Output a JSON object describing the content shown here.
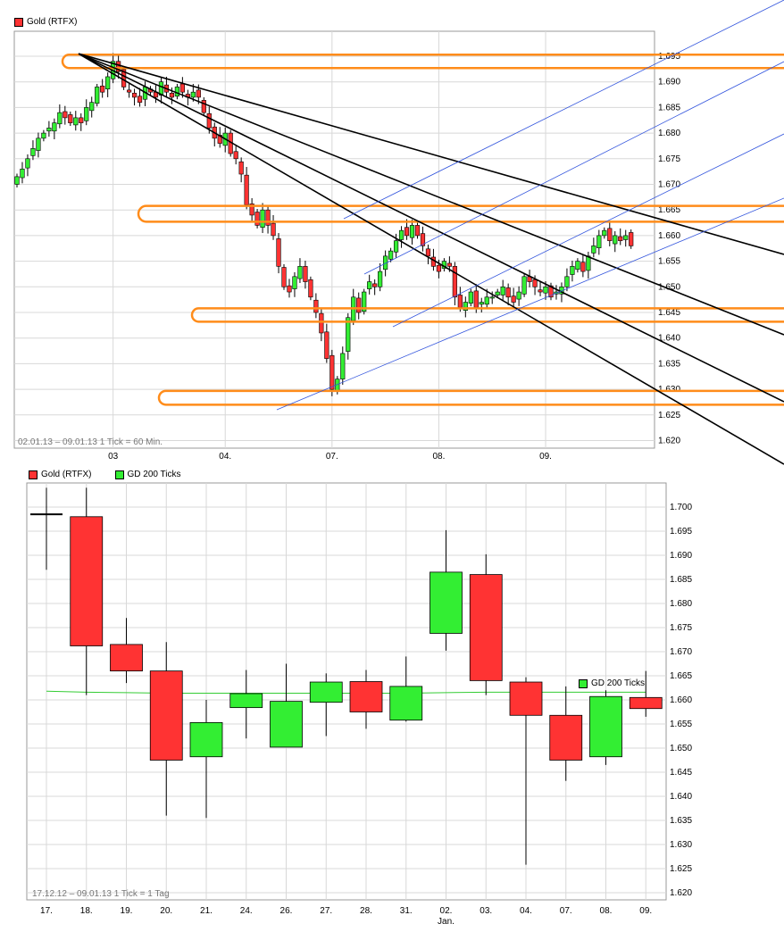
{
  "colors": {
    "up": "#33ee33",
    "down": "#ff3333",
    "orange": "#ff8c1a",
    "blue": "#3355dd",
    "black": "#000000",
    "grid": "#d8d8d8",
    "ma": "#33cc33"
  },
  "top": {
    "legend": "Gold (RTFX)",
    "info": "02.01.13 – 09.01.13   1 Tick = 60 Min."
  },
  "bottom": {
    "legend1": "Gold (RTFX)",
    "legend2": "GD 200 Ticks",
    "ma_label": "GD 200 Ticks",
    "info": "17.12.12 – 09.01.13   1 Tick = 1 Tag",
    "jan_label": "Jan."
  },
  "chart_data": [
    {
      "type": "candlestick",
      "title": "Gold (RTFX)",
      "period": "02.01.13 – 09.01.13",
      "tick": "1 Tick = 60 Min.",
      "ylim": [
        1.618,
        1.697
      ],
      "yticks": [
        "1.695",
        "1.690",
        "1.685",
        "1.680",
        "1.675",
        "1.670",
        "1.665",
        "1.660",
        "1.655",
        "1.650",
        "1.645",
        "1.640",
        "1.635",
        "1.630",
        "1.625",
        "1.620"
      ],
      "xticks": [
        "03",
        "04.",
        "07.",
        "08.",
        "09."
      ],
      "xtick_index": [
        18,
        39,
        59,
        79,
        99
      ],
      "n_bars": 116,
      "close": [
        1.6715,
        1.673,
        1.675,
        1.677,
        1.679,
        1.68,
        1.681,
        1.682,
        1.684,
        1.683,
        1.682,
        1.683,
        1.682,
        1.685,
        1.686,
        1.689,
        1.688,
        1.691,
        1.694,
        1.692,
        1.689,
        1.688,
        1.687,
        1.686,
        1.689,
        1.688,
        1.687,
        1.69,
        1.688,
        1.687,
        1.689,
        1.688,
        1.687,
        1.688,
        1.687,
        1.684,
        1.681,
        1.679,
        1.678,
        1.68,
        1.676,
        1.675,
        1.672,
        1.666,
        1.664,
        1.662,
        1.665,
        1.662,
        1.66,
        1.654,
        1.65,
        1.649,
        1.652,
        1.654,
        1.651,
        1.648,
        1.645,
        1.641,
        1.636,
        1.63,
        1.632,
        1.637,
        1.644,
        1.648,
        1.645,
        1.649,
        1.651,
        1.65,
        1.653,
        1.656,
        1.657,
        1.659,
        1.661,
        1.66,
        1.662,
        1.66,
        1.658,
        1.656,
        1.654,
        1.653,
        1.655,
        1.654,
        1.648,
        1.646,
        1.647,
        1.649,
        1.646,
        1.647,
        1.648,
        1.648,
        1.649,
        1.65,
        1.648,
        1.647,
        1.649,
        1.652,
        1.651,
        1.65,
        1.649,
        1.65,
        1.648,
        1.649,
        1.65,
        1.652,
        1.654,
        1.655,
        1.653,
        1.656,
        1.658,
        1.66,
        1.661,
        1.659,
        1.66,
        1.659,
        1.66,
        1.658
      ],
      "note": "Hourly candles with fan lines (black), trend channel (blue) and horizontal support/resistance zones (orange)"
    },
    {
      "type": "candlestick",
      "title": "Gold (RTFX)",
      "period": "17.12.12 – 09.01.13",
      "tick": "1 Tick = 1 Tag",
      "ylim": [
        1.617,
        1.706
      ],
      "yticks": [
        "1.700",
        "1.695",
        "1.690",
        "1.685",
        "1.680",
        "1.675",
        "1.670",
        "1.665",
        "1.660",
        "1.655",
        "1.650",
        "1.645",
        "1.640",
        "1.635",
        "1.630",
        "1.625",
        "1.620"
      ],
      "categories": [
        "17.",
        "18.",
        "19.",
        "20.",
        "21.",
        "24.",
        "26.",
        "27.",
        "28.",
        "31.",
        "02.",
        "03.",
        "04.",
        "07.",
        "08.",
        "09."
      ],
      "open": [
        1.6985,
        1.698,
        1.6715,
        1.666,
        1.6482,
        1.6584,
        1.6502,
        1.6595,
        1.6638,
        1.6558,
        1.6738,
        1.686,
        1.6637,
        1.6568,
        1.6482,
        1.6605
      ],
      "high": [
        1.704,
        1.704,
        1.677,
        1.672,
        1.66,
        1.6662,
        1.6675,
        1.6655,
        1.6662,
        1.669,
        1.6952,
        1.6902,
        1.6647,
        1.6628,
        1.662,
        1.666
      ],
      "low": [
        1.687,
        1.661,
        1.6635,
        1.636,
        1.6355,
        1.652,
        1.6505,
        1.6525,
        1.654,
        1.6555,
        1.6702,
        1.661,
        1.6258,
        1.6432,
        1.6465,
        1.6565
      ],
      "close": [
        1.6985,
        1.6712,
        1.666,
        1.6475,
        1.6553,
        1.6613,
        1.6597,
        1.6637,
        1.6575,
        1.6628,
        1.6865,
        1.664,
        1.6568,
        1.6475,
        1.6607,
        1.6582
      ],
      "series": [
        {
          "name": "GD 200 Ticks",
          "values": [
            1.6618,
            1.6616,
            1.6615,
            1.6614,
            1.6614,
            1.6614,
            1.6614,
            1.6614,
            1.6614,
            1.6614,
            1.6615,
            1.6616,
            1.6616,
            1.6616,
            1.6616,
            1.6616
          ]
        }
      ]
    }
  ]
}
